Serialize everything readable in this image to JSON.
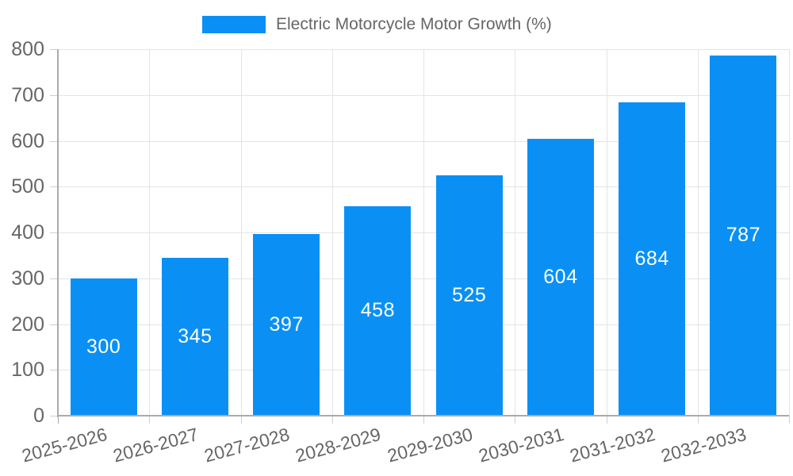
{
  "chart_data": {
    "type": "bar",
    "title": "Electric Motorcycle Motor Growth (%)",
    "legend": {
      "label": "Electric Motorcycle Motor Growth (%)",
      "position": "top-center"
    },
    "categories": [
      "2025-2026",
      "2026-2027",
      "2027-2028",
      "2028-2029",
      "2029-2030",
      "2030-2031",
      "2031-2032",
      "2032-2033"
    ],
    "values": [
      300,
      345,
      397,
      458,
      525,
      604,
      684,
      787
    ],
    "xlabel": "",
    "ylabel": "",
    "ylim": [
      0,
      800
    ],
    "ytick_step": 100,
    "yticks": [
      0,
      100,
      200,
      300,
      400,
      500,
      600,
      700,
      800
    ],
    "grid": true,
    "value_labels": "centered-inside-bars",
    "colors": {
      "bar": "#0a90f4",
      "grid": "#e4e4e4",
      "axis": "#ababab",
      "tick": "#cfcfcf",
      "text": "#666666",
      "value_label": "#ffffff"
    }
  }
}
